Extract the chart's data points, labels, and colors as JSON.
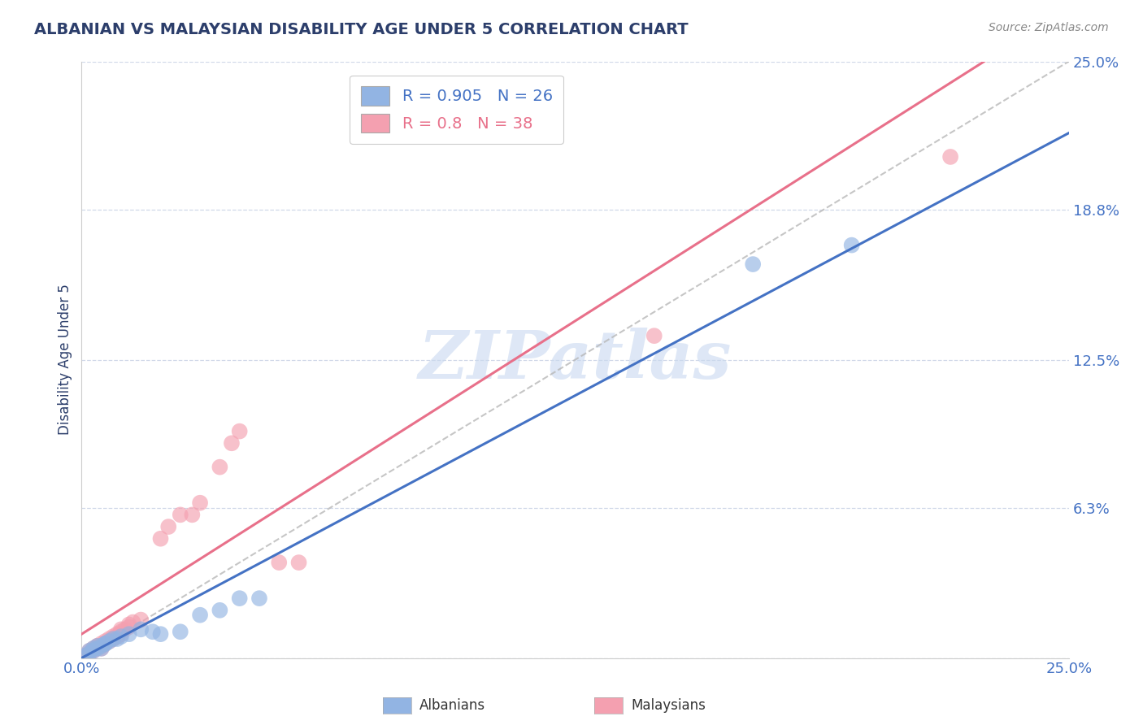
{
  "title": "ALBANIAN VS MALAYSIAN DISABILITY AGE UNDER 5 CORRELATION CHART",
  "source_text": "Source: ZipAtlas.com",
  "ylabel": "Disability Age Under 5",
  "xmin": 0.0,
  "xmax": 0.25,
  "ymin": 0.0,
  "ymax": 0.25,
  "ytick_vals": [
    0.0,
    0.063,
    0.125,
    0.188,
    0.25
  ],
  "ytick_labels": [
    "",
    "6.3%",
    "12.5%",
    "18.8%",
    "25.0%"
  ],
  "xtick_vals": [
    0.0,
    0.25
  ],
  "xtick_labels": [
    "0.0%",
    "25.0%"
  ],
  "albanian_R": 0.905,
  "albanian_N": 26,
  "malaysian_R": 0.8,
  "malaysian_N": 38,
  "albanian_color": "#92b4e3",
  "malaysian_color": "#f4a0b0",
  "albanian_line_color": "#4472c4",
  "malaysian_line_color": "#e8708a",
  "diagonal_color": "#b8b8b8",
  "watermark_text": "ZIPatlas",
  "watermark_color": "#c8d8f0",
  "background_color": "#ffffff",
  "grid_color": "#d0d8e8",
  "title_color": "#2c3e6b",
  "tick_color": "#4472c4",
  "albanian_line_intercept": 0.0,
  "albanian_line_slope": 0.88,
  "malaysian_line_intercept": 0.01,
  "malaysian_line_slope": 1.05,
  "albanian_scatter_x": [
    0.001,
    0.002,
    0.002,
    0.003,
    0.003,
    0.004,
    0.004,
    0.005,
    0.005,
    0.006,
    0.006,
    0.007,
    0.008,
    0.009,
    0.01,
    0.012,
    0.015,
    0.018,
    0.02,
    0.025,
    0.03,
    0.035,
    0.04,
    0.045,
    0.17,
    0.195
  ],
  "albanian_scatter_y": [
    0.001,
    0.002,
    0.003,
    0.003,
    0.004,
    0.004,
    0.005,
    0.004,
    0.005,
    0.006,
    0.006,
    0.007,
    0.008,
    0.008,
    0.009,
    0.01,
    0.012,
    0.011,
    0.01,
    0.011,
    0.018,
    0.02,
    0.025,
    0.025,
    0.165,
    0.173
  ],
  "malaysian_scatter_x": [
    0.001,
    0.002,
    0.002,
    0.003,
    0.003,
    0.004,
    0.004,
    0.005,
    0.005,
    0.005,
    0.006,
    0.006,
    0.007,
    0.007,
    0.008,
    0.008,
    0.009,
    0.009,
    0.01,
    0.01,
    0.01,
    0.011,
    0.012,
    0.012,
    0.013,
    0.015,
    0.02,
    0.022,
    0.025,
    0.028,
    0.03,
    0.035,
    0.038,
    0.04,
    0.05,
    0.055,
    0.145,
    0.22
  ],
  "malaysian_scatter_y": [
    0.001,
    0.002,
    0.003,
    0.003,
    0.004,
    0.005,
    0.005,
    0.004,
    0.005,
    0.006,
    0.006,
    0.007,
    0.007,
    0.008,
    0.008,
    0.009,
    0.009,
    0.01,
    0.01,
    0.011,
    0.012,
    0.012,
    0.013,
    0.014,
    0.015,
    0.016,
    0.05,
    0.055,
    0.06,
    0.06,
    0.065,
    0.08,
    0.09,
    0.095,
    0.04,
    0.04,
    0.135,
    0.21
  ]
}
